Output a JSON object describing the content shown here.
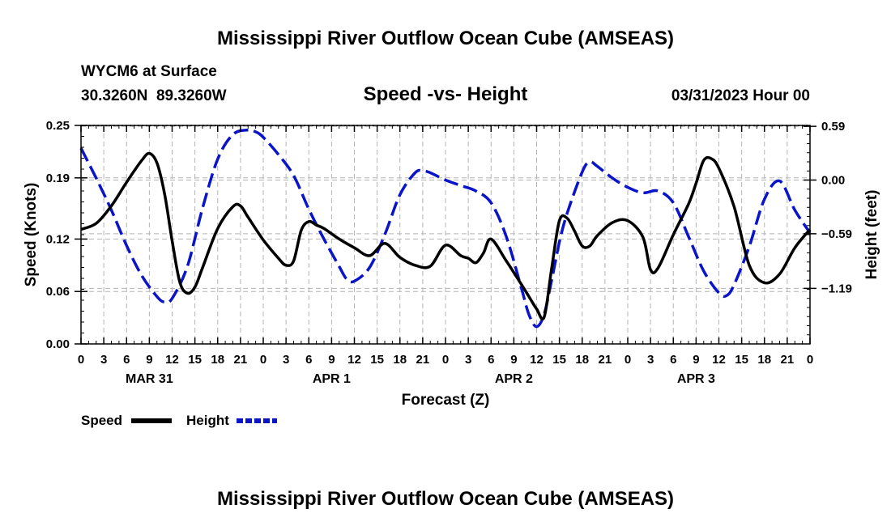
{
  "page_title": "Mississippi River Outflow Ocean Cube (AMSEAS)",
  "footer_title": "Mississippi River Outflow Ocean Cube (AMSEAS)",
  "station": {
    "name_line": "WYCM6 at Surface",
    "coords_line": "30.3260N  89.3260W"
  },
  "run_label": "03/31/2023 Hour 00",
  "colors": {
    "speed": "#000000",
    "height": "#0a14c8",
    "grid": "#b4b4b4"
  },
  "chart_data": {
    "type": "line",
    "title": "Speed -vs- Height",
    "xlabel": "Forecast (Z)",
    "ylabel_left": "Speed (Knots)",
    "ylabel_right": "Height (feet)",
    "grid": true,
    "legend_position": "bottom-left",
    "x_range_hours": [
      0,
      96
    ],
    "x_tick_step_hours": 3,
    "x_tick_labels": [
      "0",
      "3",
      "6",
      "9",
      "12",
      "15",
      "18",
      "21",
      "0",
      "3",
      "6",
      "9",
      "12",
      "15",
      "18",
      "21",
      "0",
      "3",
      "6",
      "9",
      "12",
      "15",
      "18",
      "21",
      "0",
      "3",
      "6",
      "9",
      "12",
      "15",
      "18",
      "21",
      "0"
    ],
    "day_labels": [
      {
        "label": "MAR 31",
        "hour": 9
      },
      {
        "label": "APR 1",
        "hour": 33
      },
      {
        "label": "APR 2",
        "hour": 57
      },
      {
        "label": "APR 3",
        "hour": 81
      }
    ],
    "y_left": {
      "range": [
        0,
        0.25
      ],
      "ticks": [
        0.25,
        0.19,
        0.12,
        0.06,
        0.0
      ],
      "tick_labels": [
        "0.25",
        "0.19",
        "0.12",
        "0.06",
        "0.00"
      ]
    },
    "y_right": {
      "range": [
        -1.8,
        0.6
      ],
      "ticks": [
        0.59,
        0.0,
        -0.59,
        -1.19
      ],
      "tick_labels": [
        "0.59",
        "0.00",
        "−0.59",
        "−1.19"
      ]
    },
    "series": [
      {
        "name": "Speed",
        "axis": "left",
        "style": "solid",
        "x": [
          0,
          2,
          4,
          6,
          8,
          9,
          10,
          11,
          12,
          13,
          14,
          15,
          16,
          18,
          20,
          21,
          22,
          24,
          26,
          27,
          28,
          29,
          30,
          31,
          32,
          34,
          36,
          38,
          40,
          42,
          44,
          46,
          48,
          50,
          51,
          52,
          53,
          54,
          56,
          58,
          59,
          60,
          61,
          62,
          63,
          64,
          65,
          66,
          67,
          68,
          70,
          72,
          74,
          75,
          76,
          78,
          80,
          81,
          82,
          83,
          84,
          86,
          88,
          90,
          92,
          94,
          96
        ],
        "values": [
          0.131,
          0.138,
          0.158,
          0.185,
          0.21,
          0.218,
          0.207,
          0.172,
          0.118,
          0.071,
          0.058,
          0.065,
          0.087,
          0.132,
          0.157,
          0.158,
          0.145,
          0.119,
          0.098,
          0.09,
          0.095,
          0.13,
          0.14,
          0.136,
          0.132,
          0.12,
          0.11,
          0.101,
          0.115,
          0.099,
          0.09,
          0.089,
          0.113,
          0.101,
          0.098,
          0.093,
          0.104,
          0.12,
          0.095,
          0.068,
          0.054,
          0.04,
          0.031,
          0.088,
          0.141,
          0.144,
          0.129,
          0.112,
          0.112,
          0.124,
          0.139,
          0.141,
          0.122,
          0.085,
          0.087,
          0.125,
          0.16,
          0.184,
          0.21,
          0.212,
          0.201,
          0.157,
          0.09,
          0.07,
          0.08,
          0.11,
          0.131
        ]
      },
      {
        "name": "Height",
        "axis": "right",
        "style": "dashed",
        "x": [
          0,
          2,
          4,
          6,
          8,
          10,
          11,
          12,
          14,
          16,
          18,
          20,
          22,
          23,
          24,
          26,
          28,
          30,
          32,
          34,
          35,
          36,
          38,
          40,
          42,
          44,
          45,
          46,
          48,
          50,
          52,
          54,
          56,
          58,
          59,
          60,
          61,
          62,
          63,
          64,
          66,
          67,
          68,
          70,
          72,
          74,
          76,
          78,
          80,
          82,
          84,
          85,
          86,
          88,
          90,
          92,
          94,
          96
        ],
        "values": [
          0.35,
          0.02,
          -0.33,
          -0.72,
          -1.05,
          -1.28,
          -1.34,
          -1.3,
          -0.95,
          -0.31,
          0.23,
          0.5,
          0.55,
          0.53,
          0.47,
          0.28,
          0.05,
          -0.32,
          -0.65,
          -0.95,
          -1.09,
          -1.11,
          -0.96,
          -0.6,
          -0.16,
          0.08,
          0.1,
          0.08,
          0.0,
          -0.06,
          -0.12,
          -0.25,
          -0.62,
          -1.19,
          -1.48,
          -1.61,
          -1.47,
          -1.09,
          -0.68,
          -0.37,
          0.09,
          0.2,
          0.15,
          0.02,
          -0.08,
          -0.14,
          -0.12,
          -0.25,
          -0.62,
          -1.0,
          -1.24,
          -1.27,
          -1.15,
          -0.73,
          -0.21,
          -0.01,
          -0.33,
          -0.58
        ]
      }
    ]
  }
}
